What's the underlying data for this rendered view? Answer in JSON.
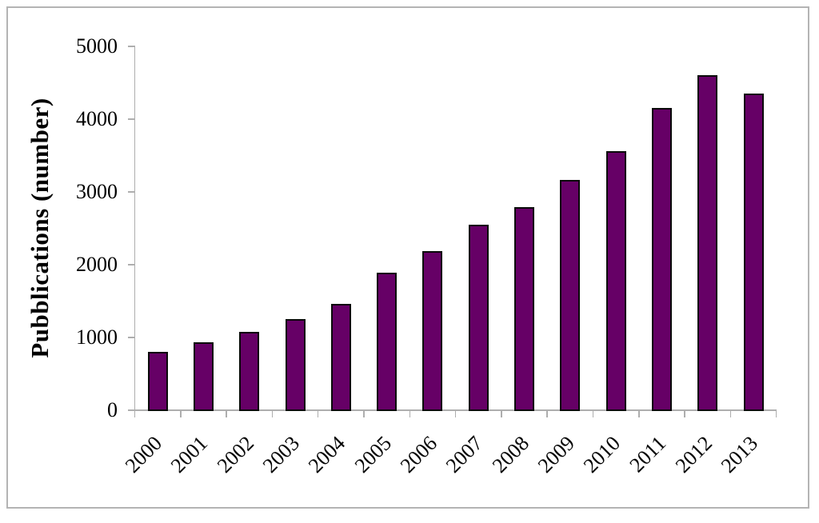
{
  "chart_data": {
    "type": "bar",
    "title": "",
    "xlabel": "",
    "ylabel": "Pubblications (number)",
    "categories": [
      "2000",
      "2001",
      "2002",
      "2003",
      "2004",
      "2005",
      "2006",
      "2007",
      "2008",
      "2009",
      "2010",
      "2011",
      "2012",
      "2013"
    ],
    "values": [
      800,
      930,
      1080,
      1255,
      1465,
      1885,
      2190,
      2550,
      2795,
      3160,
      3560,
      4150,
      4600,
      4355
    ],
    "ylim": [
      0,
      5000
    ],
    "yticks": [
      0,
      1000,
      2000,
      3000,
      4000,
      5000
    ],
    "ytick_step": 1000,
    "grid": false,
    "legend": "none",
    "x_label_rotation_deg": 45,
    "bar_color": "#660066",
    "bar_border_color": "#0a0a0a",
    "axis_color": "#aeaeae",
    "text_color": "#000000",
    "figure_border_color": "#b4b4b4",
    "background_color": "#ffffff"
  }
}
